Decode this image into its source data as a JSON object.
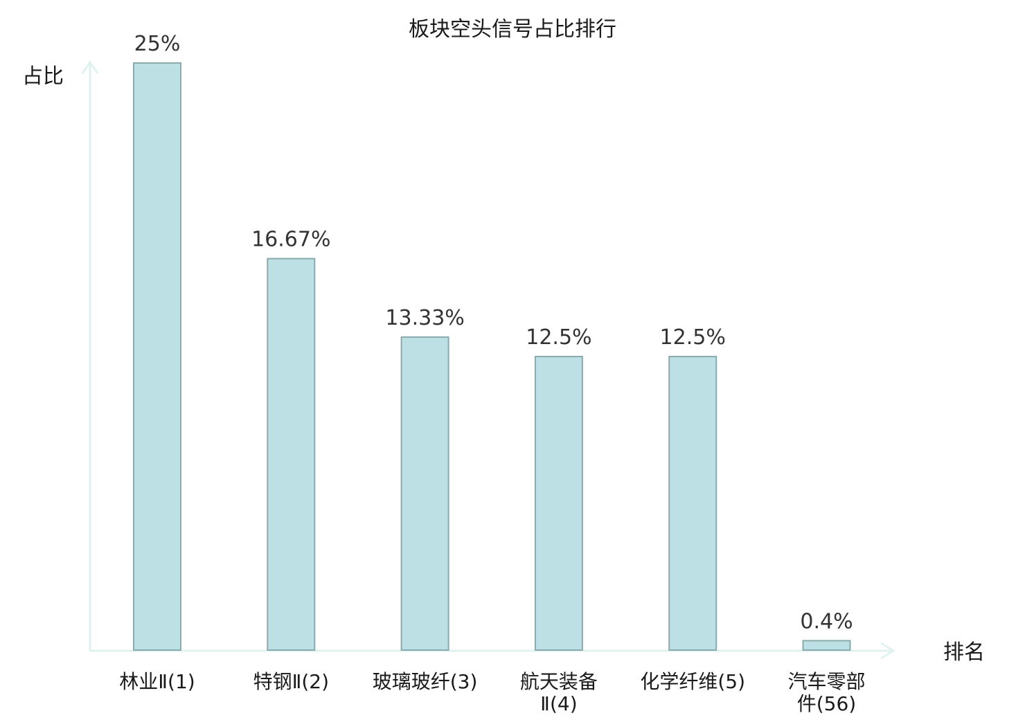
{
  "chart_data": {
    "type": "bar",
    "title": "板块空头信号占比排行",
    "ylabel": "占比",
    "xlabel": "排名",
    "ylim": [
      0,
      25
    ],
    "grid": false,
    "categories": [
      [
        "林业Ⅱ(1)"
      ],
      [
        "特钢Ⅱ(2)"
      ],
      [
        "玻璃玻纤(3)"
      ],
      [
        "航天装备",
        "Ⅱ(4)"
      ],
      [
        "化学纤维(5)"
      ],
      [
        "汽车零部",
        "件(56)"
      ]
    ],
    "values": [
      25,
      16.67,
      13.33,
      12.5,
      12.5,
      0.4
    ],
    "value_labels": [
      "25%",
      "16.67%",
      "13.33%",
      "12.5%",
      "12.5%",
      "0.4%"
    ],
    "highlight_index": 5,
    "colors": {
      "bar_fill": "#bce0e3",
      "bar_stroke": "#8aabad",
      "axis": "#e0f2ef",
      "highlight_label": "#e01010",
      "label": "#1a1a1a"
    }
  }
}
